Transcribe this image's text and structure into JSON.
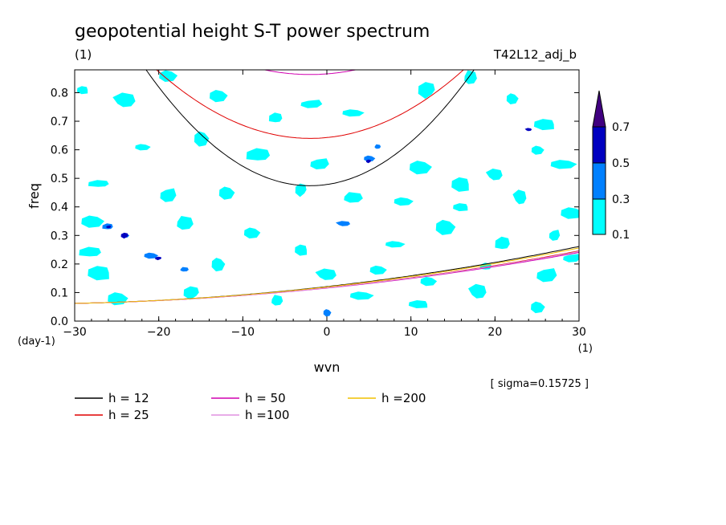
{
  "chart_data": {
    "type": "heatmap",
    "title": "geopotential height S-T power spectrum",
    "units_label": "(1)",
    "run_label": "T42L12_adj_b",
    "xlabel": "wvn",
    "ylabel": "freq",
    "x_unit_label": "(1)",
    "y_unit_label": "(day-1)",
    "xlim": [
      -30,
      30
    ],
    "ylim": [
      0,
      0.88
    ],
    "x_ticks": [
      -30,
      -20,
      -10,
      0,
      10,
      20,
      30
    ],
    "y_ticks": [
      0.0,
      0.1,
      0.2,
      0.3,
      0.4,
      0.5,
      0.6,
      0.7,
      0.8
    ],
    "sigma_text": "[ sigma=0.15725 ]",
    "colorbar": {
      "levels": [
        0.1,
        0.3,
        0.5,
        0.7
      ],
      "colors": [
        "#00ffff",
        "#0080ff",
        "#0000c0",
        "#400080"
      ]
    },
    "contour_blobs": [
      {
        "x": -29,
        "y": 0.81,
        "level": 1
      },
      {
        "x": -24,
        "y": 0.77,
        "level": 1
      },
      {
        "x": -19,
        "y": 0.86,
        "level": 1
      },
      {
        "x": -13,
        "y": 0.79,
        "level": 1
      },
      {
        "x": -6,
        "y": 0.71,
        "level": 1
      },
      {
        "x": -2,
        "y": 0.76,
        "level": 1
      },
      {
        "x": 3,
        "y": 0.73,
        "level": 1
      },
      {
        "x": 12,
        "y": 0.81,
        "level": 1
      },
      {
        "x": 17,
        "y": 0.85,
        "level": 1
      },
      {
        "x": 22,
        "y": 0.78,
        "level": 1
      },
      {
        "x": 26,
        "y": 0.69,
        "level": 1
      },
      {
        "x": 24,
        "y": 0.67,
        "level": 3
      },
      {
        "x": -22,
        "y": 0.61,
        "level": 1
      },
      {
        "x": -15,
        "y": 0.64,
        "level": 1
      },
      {
        "x": -8,
        "y": 0.58,
        "level": 1
      },
      {
        "x": -1,
        "y": 0.55,
        "level": 1
      },
      {
        "x": 5,
        "y": 0.57,
        "level": 2
      },
      {
        "x": 5,
        "y": 0.56,
        "level": 3
      },
      {
        "x": 6,
        "y": 0.61,
        "level": 2
      },
      {
        "x": 11,
        "y": 0.54,
        "level": 1
      },
      {
        "x": 16,
        "y": 0.48,
        "level": 1
      },
      {
        "x": 20,
        "y": 0.51,
        "level": 1
      },
      {
        "x": 25,
        "y": 0.6,
        "level": 1
      },
      {
        "x": 28,
        "y": 0.55,
        "level": 1
      },
      {
        "x": -27,
        "y": 0.48,
        "level": 1
      },
      {
        "x": -19,
        "y": 0.44,
        "level": 1
      },
      {
        "x": -12,
        "y": 0.45,
        "level": 1
      },
      {
        "x": -3,
        "y": 0.46,
        "level": 1
      },
      {
        "x": 3,
        "y": 0.43,
        "level": 1
      },
      {
        "x": 9,
        "y": 0.42,
        "level": 1
      },
      {
        "x": 16,
        "y": 0.4,
        "level": 1
      },
      {
        "x": 23,
        "y": 0.43,
        "level": 1
      },
      {
        "x": 29,
        "y": 0.38,
        "level": 1
      },
      {
        "x": -28,
        "y": 0.35,
        "level": 1
      },
      {
        "x": -26,
        "y": 0.33,
        "level": 2
      },
      {
        "x": -26,
        "y": 0.33,
        "level": 3
      },
      {
        "x": -24,
        "y": 0.3,
        "level": 2
      },
      {
        "x": -24,
        "y": 0.3,
        "level": 3
      },
      {
        "x": -17,
        "y": 0.34,
        "level": 1
      },
      {
        "x": -9,
        "y": 0.31,
        "level": 1
      },
      {
        "x": -3,
        "y": 0.25,
        "level": 1
      },
      {
        "x": 2,
        "y": 0.34,
        "level": 2
      },
      {
        "x": 8,
        "y": 0.27,
        "level": 1
      },
      {
        "x": 14,
        "y": 0.33,
        "level": 1
      },
      {
        "x": 21,
        "y": 0.27,
        "level": 1
      },
      {
        "x": 27,
        "y": 0.3,
        "level": 1
      },
      {
        "x": -21,
        "y": 0.23,
        "level": 2
      },
      {
        "x": -20,
        "y": 0.22,
        "level": 3
      },
      {
        "x": -17,
        "y": 0.18,
        "level": 2
      },
      {
        "x": -13,
        "y": 0.2,
        "level": 1
      },
      {
        "x": -27,
        "y": 0.17,
        "level": 1
      },
      {
        "x": 0,
        "y": 0.16,
        "level": 1
      },
      {
        "x": 6,
        "y": 0.18,
        "level": 1
      },
      {
        "x": 12,
        "y": 0.14,
        "level": 1
      },
      {
        "x": 19,
        "y": 0.19,
        "level": 1
      },
      {
        "x": 26,
        "y": 0.16,
        "level": 1
      },
      {
        "x": -25,
        "y": 0.08,
        "level": 1
      },
      {
        "x": -16,
        "y": 0.1,
        "level": 1
      },
      {
        "x": -6,
        "y": 0.07,
        "level": 1
      },
      {
        "x": 4,
        "y": 0.09,
        "level": 1
      },
      {
        "x": 11,
        "y": 0.06,
        "level": 1
      },
      {
        "x": 18,
        "y": 0.1,
        "level": 1
      },
      {
        "x": 25,
        "y": 0.05,
        "level": 1
      },
      {
        "x": 0,
        "y": 0.03,
        "level": 2
      },
      {
        "x": -28,
        "y": 0.24,
        "level": 1
      },
      {
        "x": 29,
        "y": 0.22,
        "level": 1
      }
    ],
    "dispersion_curves": [
      {
        "label": "h = 12",
        "h": 12,
        "color": "#000000"
      },
      {
        "label": "h = 25",
        "h": 25,
        "color": "#e00000"
      },
      {
        "label": "h = 50",
        "h": 50,
        "color": "#d000b0"
      },
      {
        "label": "h =100",
        "h": 100,
        "color": "#e090e0"
      },
      {
        "label": "h =200",
        "h": 200,
        "color": "#f0c000"
      }
    ]
  }
}
